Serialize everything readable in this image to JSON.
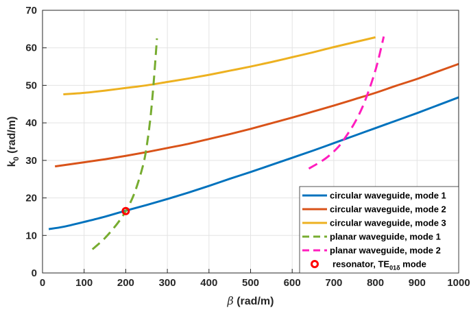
{
  "chart_data": {
    "type": "line",
    "xlabel_symbol": "β",
    "xlabel_rest": " (rad/m)",
    "ylabel_main": "k",
    "ylabel_sub": "0",
    "ylabel_rest": " (rad/m)",
    "xlim": [
      0,
      1000
    ],
    "ylim": [
      0,
      70
    ],
    "xticks": [
      0,
      100,
      200,
      300,
      400,
      500,
      600,
      700,
      800,
      900,
      1000
    ],
    "yticks": [
      0,
      10,
      20,
      30,
      40,
      50,
      60,
      70
    ],
    "grid": true,
    "legend_position": "bottom-right",
    "series": [
      {
        "name": "circular waveguide, mode 1",
        "color": "#0072BD",
        "style": "solid",
        "x": [
          15,
          50,
          100,
          150,
          200,
          250,
          300,
          350,
          400,
          450,
          500,
          550,
          600,
          650,
          700,
          750,
          800,
          850,
          900,
          950,
          1000
        ],
        "y": [
          11.7,
          12.3,
          13.6,
          15.0,
          16.6,
          18.1,
          19.7,
          21.4,
          23.2,
          25.1,
          26.9,
          28.8,
          30.7,
          32.6,
          34.6,
          36.6,
          38.6,
          40.6,
          42.6,
          44.7,
          46.8
        ]
      },
      {
        "name": "circular waveguide, mode 2",
        "color": "#D95319",
        "style": "solid",
        "x": [
          30,
          100,
          150,
          200,
          250,
          300,
          350,
          400,
          450,
          500,
          550,
          600,
          650,
          700,
          750,
          800,
          850,
          900,
          950,
          1000
        ],
        "y": [
          28.4,
          29.5,
          30.3,
          31.2,
          32.2,
          33.3,
          34.4,
          35.7,
          37.0,
          38.4,
          39.9,
          41.4,
          43.0,
          44.6,
          46.3,
          48.0,
          49.9,
          51.7,
          53.7,
          55.7
        ]
      },
      {
        "name": "circular waveguide, mode 3",
        "color": "#EDB120",
        "style": "solid",
        "x": [
          50,
          100,
          150,
          200,
          250,
          300,
          350,
          400,
          450,
          500,
          550,
          600,
          650,
          700,
          750,
          800
        ],
        "y": [
          47.6,
          48.0,
          48.6,
          49.3,
          50.0,
          50.9,
          51.8,
          52.8,
          53.9,
          55.0,
          56.2,
          57.5,
          58.8,
          60.2,
          61.5,
          62.8
        ]
      },
      {
        "name": "planar waveguide, mode 1",
        "color": "#77AC30",
        "style": "dashed",
        "x": [
          120,
          150,
          180,
          200,
          220,
          240,
          250,
          260,
          268,
          275
        ],
        "y": [
          6.3,
          9.3,
          13.2,
          16.5,
          21.0,
          28.0,
          33.5,
          42.0,
          52.0,
          62.5
        ]
      },
      {
        "name": "planar waveguide, mode 2",
        "color": "#FF1DBE",
        "style": "dashed",
        "x": [
          640,
          680,
          710,
          730,
          750,
          770,
          790,
          805,
          820
        ],
        "y": [
          27.8,
          30.5,
          33.5,
          36.5,
          40.0,
          44.5,
          50.5,
          56.0,
          63.0
        ]
      },
      {
        "name_prefix": "resonator, TE",
        "name_subscript": "01δ",
        "name_suffix": " mode",
        "color": "#FF0000",
        "style": "marker",
        "x": [
          200
        ],
        "y": [
          16.5
        ]
      }
    ]
  }
}
